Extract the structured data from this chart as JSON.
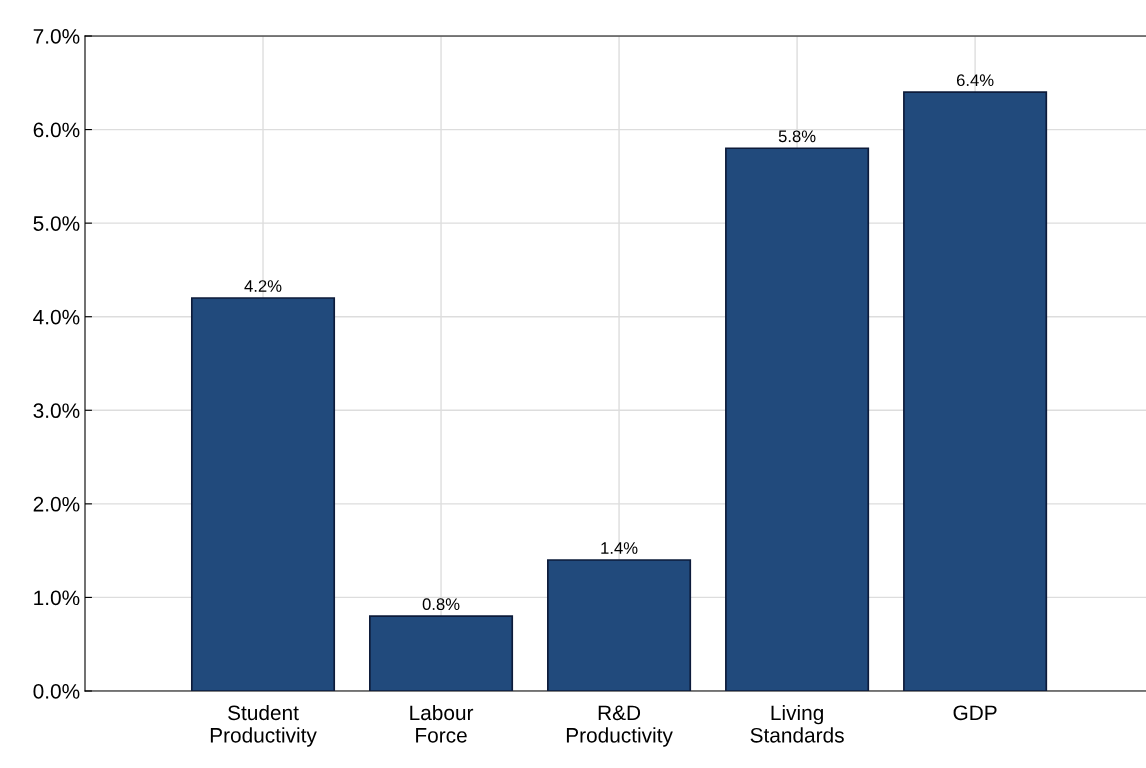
{
  "chart_data": {
    "type": "bar",
    "categories": [
      "Student\nProductivity",
      "Labour\nForce",
      "R&D\nProductivity",
      "Living\nStandards",
      "GDP"
    ],
    "values": [
      4.2,
      0.8,
      1.4,
      5.8,
      6.4
    ],
    "value_labels": [
      "4.2%",
      "0.8%",
      "1.4%",
      "5.8%",
      "6.4%"
    ],
    "color": "#214a7c",
    "ylim": [
      0,
      7
    ],
    "yticks": [
      {
        "value": 0,
        "label": "0.0%"
      },
      {
        "value": 1,
        "label": "1.0%"
      },
      {
        "value": 2,
        "label": "2.0%"
      },
      {
        "value": 3,
        "label": "3.0%"
      },
      {
        "value": 4,
        "label": "4.0%"
      },
      {
        "value": 5,
        "label": "5.0%"
      },
      {
        "value": 6,
        "label": "6.0%"
      },
      {
        "value": 7,
        "label": "7.0%"
      }
    ],
    "grid": true
  }
}
